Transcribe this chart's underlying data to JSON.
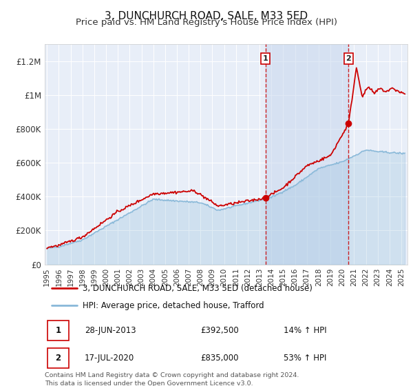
{
  "title": "3, DUNCHURCH ROAD, SALE, M33 5ED",
  "subtitle": "Price paid vs. HM Land Registry's House Price Index (HPI)",
  "ylim": [
    0,
    1300000
  ],
  "xlim": [
    1994.8,
    2025.5
  ],
  "yticks": [
    0,
    200000,
    400000,
    600000,
    800000,
    1000000,
    1200000
  ],
  "ytick_labels": [
    "£0",
    "£200K",
    "£400K",
    "£600K",
    "£800K",
    "£1M",
    "£1.2M"
  ],
  "xticks": [
    1995,
    1996,
    1997,
    1998,
    1999,
    2000,
    2001,
    2002,
    2003,
    2004,
    2005,
    2006,
    2007,
    2008,
    2009,
    2010,
    2011,
    2012,
    2013,
    2014,
    2015,
    2016,
    2017,
    2018,
    2019,
    2020,
    2021,
    2022,
    2023,
    2024,
    2025
  ],
  "fig_bg_color": "#ffffff",
  "plot_bg_color": "#e8eef8",
  "grid_color": "#ffffff",
  "red_line_color": "#cc0000",
  "blue_line_color": "#88b8d8",
  "shade_color": "#c8d8ee",
  "sale1_x": 2013.49,
  "sale1_y": 392500,
  "sale2_x": 2020.54,
  "sale2_y": 835000,
  "sale1_date": "28-JUN-2013",
  "sale1_price": "£392,500",
  "sale1_hpi": "14% ↑ HPI",
  "sale2_date": "17-JUL-2020",
  "sale2_price": "£835,000",
  "sale2_hpi": "53% ↑ HPI",
  "legend_line1": "3, DUNCHURCH ROAD, SALE, M33 5ED (detached house)",
  "legend_line2": "HPI: Average price, detached house, Trafford",
  "footnote": "Contains HM Land Registry data © Crown copyright and database right 2024.\nThis data is licensed under the Open Government Licence v3.0."
}
